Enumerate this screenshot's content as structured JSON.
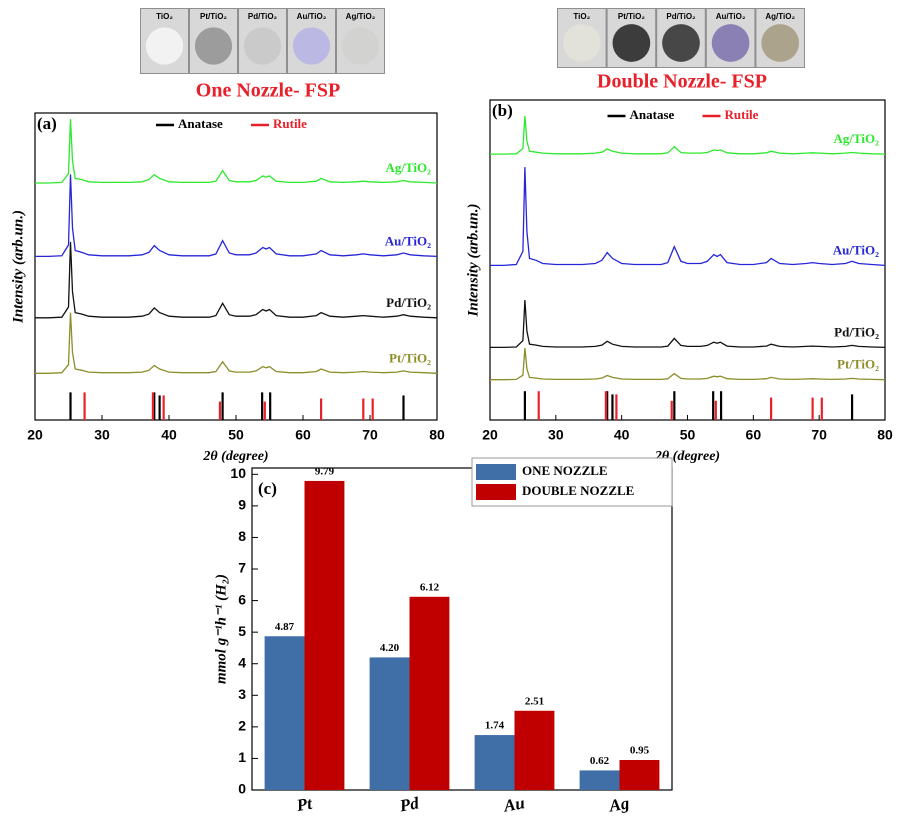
{
  "chart_data": [
    {
      "type": "xrd",
      "panel": "(a)",
      "heading": "One Nozzle- FSP",
      "samples": [
        {
          "name": "TiO₂",
          "color": "#f2f2f2"
        },
        {
          "name": "Pt/TiO₂",
          "color": "#9c9c9c"
        },
        {
          "name": "Pd/TiO₂",
          "color": "#cacaca"
        },
        {
          "name": "Au/TiO₂",
          "color": "#bcb8e4"
        },
        {
          "name": "Ag/TiO₂",
          "color": "#d2d2d0"
        }
      ],
      "xlabel": "2θ (degree)",
      "ylabel": "Intensity (arb.un.)",
      "xlim": [
        20,
        80
      ],
      "xticks": [
        20,
        30,
        40,
        50,
        60,
        70,
        80
      ],
      "ylim": [
        0,
        100
      ],
      "x": [
        20,
        22,
        24,
        25,
        25.3,
        25.6,
        26,
        27,
        28,
        30,
        32,
        34,
        36,
        37,
        37.8,
        38.6,
        40,
        42,
        44,
        46,
        47,
        48,
        49,
        50,
        52,
        53,
        54,
        54.5,
        55,
        56,
        58,
        60,
        62,
        62.7,
        64,
        66,
        68,
        69,
        70,
        72,
        74,
        75,
        76,
        78,
        80
      ],
      "series": [
        {
          "name": "Ag/TiO₂",
          "color": "#2ee82e",
          "values": [
            77.2,
            77.2,
            77.4,
            80.2,
            98,
            84.4,
            78.7,
            78.3,
            77.6,
            77.4,
            77.4,
            77.4,
            77.6,
            78.3,
            79.9,
            78.7,
            77.6,
            77.4,
            77.4,
            77.4,
            77.8,
            81.2,
            78,
            77.6,
            77.6,
            78,
            79.5,
            79.1,
            79.5,
            77.8,
            77.4,
            77.4,
            77.8,
            78.7,
            77.6,
            77.4,
            77.6,
            77.8,
            77.6,
            77.4,
            77.6,
            78,
            77.6,
            77.4,
            77.2
          ]
        },
        {
          "name": "Au/TiO₂",
          "color": "#2626d8",
          "values": [
            53.3,
            53.3,
            53.5,
            57,
            80,
            62.5,
            55.2,
            54.6,
            53.8,
            53.5,
            53.5,
            53.5,
            53.8,
            54.6,
            56.8,
            55.2,
            53.8,
            53.5,
            53.5,
            53.5,
            54.1,
            58.4,
            54.4,
            53.8,
            53.8,
            54.4,
            56.2,
            55.7,
            56.2,
            54.1,
            53.5,
            53.5,
            54.1,
            55.2,
            53.8,
            53.5,
            53.8,
            54.1,
            53.8,
            53.5,
            53.8,
            54.4,
            53.8,
            53.5,
            53.3
          ]
        },
        {
          "name": "Pd/TiO₂",
          "color": "#111111",
          "values": [
            33.3,
            33.3,
            33.5,
            36.8,
            58,
            41.8,
            35,
            34.5,
            33.8,
            33.5,
            33.5,
            33.5,
            33.8,
            34.5,
            36.5,
            35,
            33.8,
            33.5,
            33.5,
            33.5,
            34,
            38,
            34.3,
            33.8,
            33.8,
            34.3,
            36,
            35.5,
            36,
            34,
            33.5,
            33.5,
            34,
            35,
            33.8,
            33.5,
            33.8,
            34,
            33.8,
            33.5,
            33.8,
            34.3,
            33.8,
            33.5,
            33.3
          ]
        },
        {
          "name": "Pt/TiO₂",
          "color": "#8d8d2a",
          "values": [
            15.2,
            15.2,
            15.4,
            18,
            35,
            22,
            16.6,
            16.2,
            15.6,
            15.4,
            15.4,
            15.4,
            15.6,
            16.2,
            17.8,
            16.6,
            15.6,
            15.4,
            15.4,
            15.4,
            15.8,
            19,
            16,
            15.6,
            15.6,
            16,
            17.4,
            17,
            17.4,
            15.8,
            15.4,
            15.4,
            15.8,
            16.6,
            15.6,
            15.4,
            15.6,
            15.8,
            15.6,
            15.4,
            15.6,
            16,
            15.6,
            15.4,
            15.2
          ]
        }
      ],
      "reference_lines": [
        {
          "name": "Anatase",
          "color": "#000000",
          "x": [
            25.3,
            37.8,
            38.6,
            48.0,
            53.9,
            55.1,
            75.0
          ],
          "values": [
            9,
            9,
            8,
            9,
            9,
            9,
            8
          ]
        },
        {
          "name": "Rutile",
          "color": "#e8202a",
          "x": [
            27.4,
            37.6,
            39.2,
            47.6,
            54.3,
            62.7,
            69.0,
            70.4
          ],
          "values": [
            9,
            9,
            8,
            6,
            6,
            7,
            7,
            7
          ]
        }
      ]
    },
    {
      "type": "xrd",
      "panel": "(b)",
      "heading": "Double Nozzle- FSP",
      "samples": [
        {
          "name": "TiO₂",
          "color": "#e2e2da"
        },
        {
          "name": "Pt/TiO₂",
          "color": "#3c3c3c"
        },
        {
          "name": "Pd/TiO₂",
          "color": "#474747"
        },
        {
          "name": "Au/TiO₂",
          "color": "#8a80b4"
        },
        {
          "name": "Ag/TiO₂",
          "color": "#aba38b"
        }
      ],
      "xlabel": "2θ (degree)",
      "ylabel": "Intensity (arb.un.)",
      "xlim": [
        20,
        80
      ],
      "xticks": [
        20,
        30,
        40,
        50,
        60,
        70,
        80
      ],
      "ylim": [
        0,
        100
      ],
      "x": [
        20,
        22,
        24,
        25,
        25.3,
        25.6,
        26,
        27,
        28,
        30,
        32,
        34,
        36,
        37,
        37.8,
        38.6,
        40,
        42,
        44,
        46,
        47,
        48,
        49,
        50,
        52,
        53,
        54,
        54.5,
        55,
        56,
        58,
        60,
        62,
        62.7,
        64,
        66,
        68,
        69,
        70,
        72,
        74,
        75,
        76,
        78,
        80
      ],
      "series": [
        {
          "name": "Ag/TiO₂",
          "color": "#2ee82e",
          "values": [
            83.1,
            83.1,
            83.2,
            84.8,
            95,
            87.2,
            84,
            83.7,
            83.4,
            83.2,
            83.2,
            83.2,
            83.4,
            83.7,
            84.7,
            84,
            83.4,
            83.2,
            83.2,
            83.2,
            83.5,
            85.4,
            83.6,
            83.4,
            83.4,
            83.6,
            84.4,
            84.2,
            84.4,
            83.5,
            83.2,
            83.2,
            83.5,
            84,
            83.4,
            83.2,
            83.4,
            83.5,
            83.4,
            83.2,
            83.4,
            83.6,
            83.4,
            83.2,
            83.1
          ]
        },
        {
          "name": "Au/TiO₂",
          "color": "#2626d8",
          "values": [
            48.3,
            48.3,
            48.6,
            52.7,
            79,
            58.9,
            50.5,
            49.9,
            48.9,
            48.6,
            48.6,
            48.6,
            48.9,
            49.9,
            52.3,
            50.5,
            48.9,
            48.6,
            48.6,
            48.6,
            49.2,
            54.2,
            49.6,
            48.9,
            48.9,
            49.6,
            51.7,
            51.1,
            51.7,
            49.2,
            48.6,
            48.6,
            49.2,
            50.5,
            48.9,
            48.6,
            48.9,
            49.2,
            48.9,
            48.6,
            48.9,
            49.6,
            48.9,
            48.6,
            48.3
          ]
        },
        {
          "name": "Pd/TiO₂",
          "color": "#111111",
          "values": [
            22.7,
            22.7,
            22.8,
            24.8,
            37.5,
            27.8,
            23.7,
            23.4,
            23,
            22.8,
            22.8,
            22.8,
            23,
            23.4,
            24.6,
            23.7,
            23,
            22.8,
            22.8,
            22.8,
            23.1,
            25.5,
            23.3,
            23,
            23,
            23.3,
            24.3,
            24,
            24.3,
            23.1,
            22.8,
            22.8,
            23.1,
            23.7,
            23,
            22.8,
            23,
            23.1,
            23,
            22.8,
            23,
            23.3,
            23,
            22.8,
            22.7
          ]
        },
        {
          "name": "Pt/TiO₂",
          "color": "#8d8d2a",
          "values": [
            12.6,
            12.6,
            12.7,
            14,
            22.5,
            16,
            13.3,
            13.1,
            12.8,
            12.7,
            12.7,
            12.7,
            12.8,
            13.1,
            13.9,
            13.3,
            12.8,
            12.7,
            12.7,
            12.7,
            12.9,
            14.5,
            13,
            12.8,
            12.8,
            13,
            13.7,
            13.5,
            13.7,
            12.9,
            12.7,
            12.7,
            12.9,
            13.3,
            12.8,
            12.7,
            12.8,
            12.9,
            12.8,
            12.7,
            12.8,
            13,
            12.8,
            12.7,
            12.6
          ]
        }
      ],
      "reference_lines": [
        {
          "name": "Anatase",
          "color": "#000000",
          "x": [
            25.3,
            37.8,
            38.6,
            48.0,
            53.9,
            55.1,
            75.0
          ],
          "values": [
            9,
            9,
            8,
            9,
            9,
            9,
            8
          ]
        },
        {
          "name": "Rutile",
          "color": "#e8202a",
          "x": [
            27.4,
            37.6,
            39.2,
            47.6,
            54.3,
            62.7,
            69.0,
            70.4
          ],
          "values": [
            9,
            9,
            8,
            6,
            6,
            7,
            7,
            7
          ]
        }
      ]
    },
    {
      "type": "bar",
      "panel": "(c)",
      "ylabel": "mmol g⁻¹h⁻¹ (H₂)",
      "categories": [
        "Pt",
        "Pd",
        "Au",
        "Ag"
      ],
      "series": [
        {
          "name": "ONE NOZZLE",
          "color": "#3f6fa6",
          "values": [
            4.87,
            4.2,
            1.74,
            0.62
          ],
          "value_labels": [
            "4.87",
            "4.20",
            "1.74",
            "0.62"
          ]
        },
        {
          "name": "DOUBLE NOZZLE",
          "color": "#c00000",
          "values": [
            9.79,
            6.12,
            2.51,
            0.95
          ],
          "value_labels": [
            "9.79",
            "6.12",
            "2.51",
            "0.95"
          ]
        }
      ],
      "ylim": [
        0,
        10.2
      ],
      "yticks": [
        0,
        1,
        2,
        3,
        4,
        5,
        6,
        7,
        8,
        9,
        10
      ],
      "legend": "top"
    }
  ]
}
